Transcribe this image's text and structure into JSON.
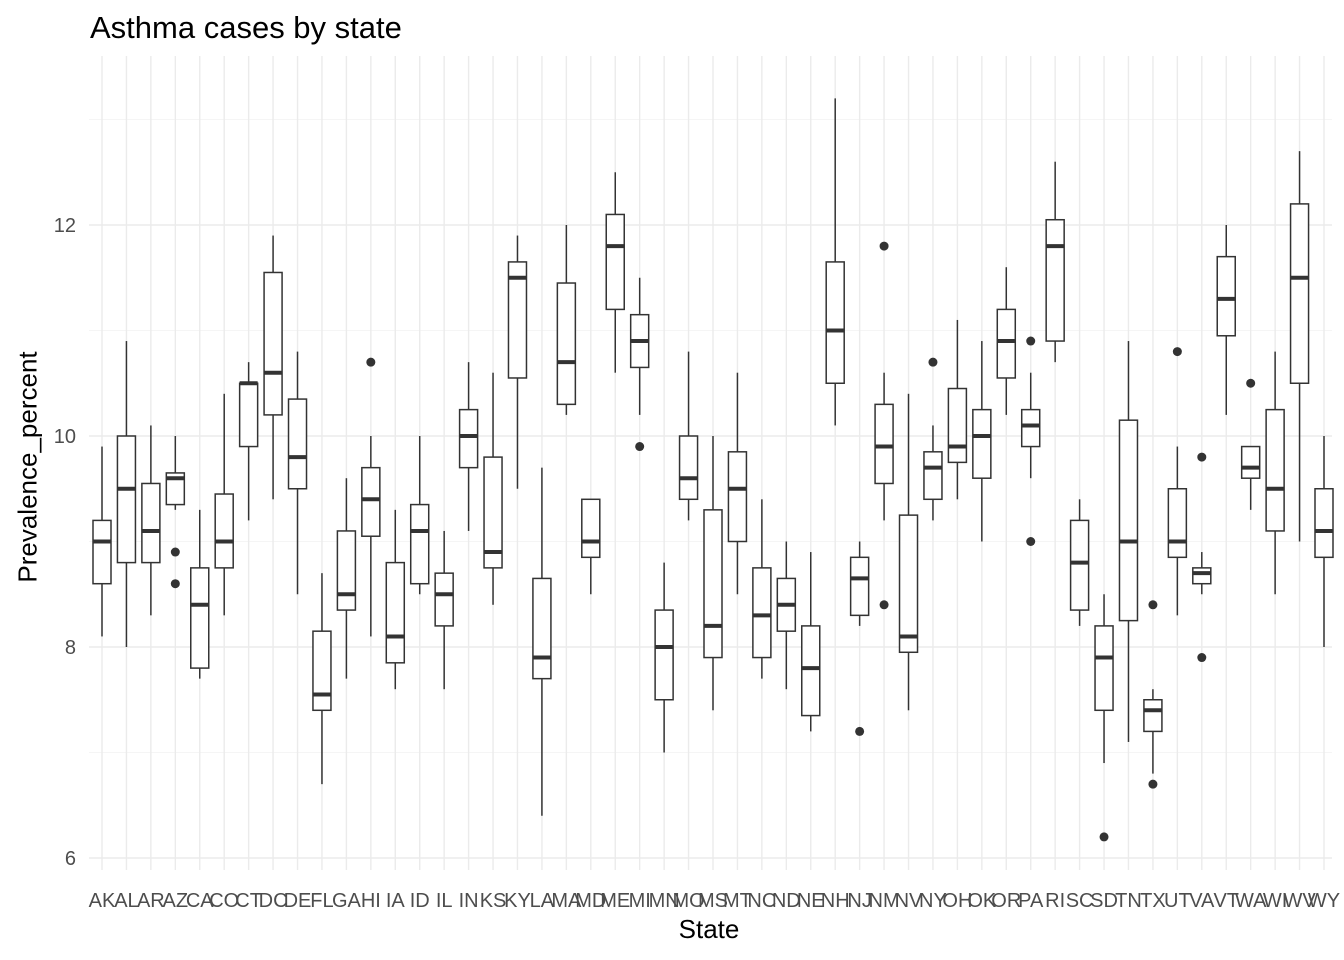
{
  "chart_data": {
    "type": "boxplot",
    "title": "Asthma cases by state",
    "xlabel": "State",
    "ylabel": "Prevalence_percent",
    "ylim": [
      5.9,
      13.4
    ],
    "y_ticks": [
      6,
      8,
      10,
      12
    ],
    "grid": true,
    "legend": "none",
    "categories": [
      "AK",
      "AL",
      "AR",
      "AZ",
      "CA",
      "CO",
      "CT",
      "DC",
      "DE",
      "FL",
      "GA",
      "HI",
      "IA",
      "ID",
      "IL",
      "IN",
      "KS",
      "KY",
      "LA",
      "MA",
      "MD",
      "ME",
      "MI",
      "MN",
      "MO",
      "MS",
      "MT",
      "NC",
      "ND",
      "NE",
      "NH",
      "NJ",
      "NM",
      "NV",
      "NY",
      "OH",
      "OK",
      "OR",
      "PA",
      "RI",
      "SC",
      "SD",
      "TN",
      "TX",
      "UT",
      "VA",
      "VT",
      "WA",
      "WI",
      "WV",
      "WY"
    ],
    "boxes": [
      {
        "state": "AK",
        "min": 8.1,
        "q1": 8.6,
        "median": 9.0,
        "q3": 9.2,
        "max": 9.9,
        "outliers": []
      },
      {
        "state": "AL",
        "min": 8.0,
        "q1": 8.8,
        "median": 9.5,
        "q3": 10.0,
        "max": 10.9,
        "outliers": []
      },
      {
        "state": "AR",
        "min": 8.3,
        "q1": 8.8,
        "median": 9.1,
        "q3": 9.55,
        "max": 10.1,
        "outliers": []
      },
      {
        "state": "AZ",
        "min": 9.3,
        "q1": 9.35,
        "median": 9.6,
        "q3": 9.65,
        "max": 10.0,
        "outliers": [
          8.9,
          8.6
        ]
      },
      {
        "state": "CA",
        "min": 7.7,
        "q1": 7.8,
        "median": 8.4,
        "q3": 8.75,
        "max": 9.3,
        "outliers": []
      },
      {
        "state": "CO",
        "min": 8.3,
        "q1": 8.75,
        "median": 9.0,
        "q3": 9.45,
        "max": 10.4,
        "outliers": []
      },
      {
        "state": "CT",
        "min": 9.2,
        "q1": 9.9,
        "median": 10.5,
        "q3": 10.5,
        "max": 10.7,
        "outliers": []
      },
      {
        "state": "DC",
        "min": 9.4,
        "q1": 10.2,
        "median": 10.6,
        "q3": 11.55,
        "max": 11.9,
        "outliers": []
      },
      {
        "state": "DE",
        "min": 8.5,
        "q1": 9.5,
        "median": 9.8,
        "q3": 10.35,
        "max": 10.8,
        "outliers": []
      },
      {
        "state": "FL",
        "min": 6.7,
        "q1": 7.4,
        "median": 7.55,
        "q3": 8.15,
        "max": 8.7,
        "outliers": []
      },
      {
        "state": "GA",
        "min": 7.7,
        "q1": 8.35,
        "median": 8.5,
        "q3": 9.1,
        "max": 9.6,
        "outliers": []
      },
      {
        "state": "HI",
        "min": 8.1,
        "q1": 9.05,
        "median": 9.4,
        "q3": 9.7,
        "max": 10.0,
        "outliers": [
          10.7
        ]
      },
      {
        "state": "IA",
        "min": 7.6,
        "q1": 7.85,
        "median": 8.1,
        "q3": 8.8,
        "max": 9.3,
        "outliers": []
      },
      {
        "state": "ID",
        "min": 8.5,
        "q1": 8.6,
        "median": 9.1,
        "q3": 9.35,
        "max": 10.0,
        "outliers": []
      },
      {
        "state": "IL",
        "min": 7.6,
        "q1": 8.2,
        "median": 8.5,
        "q3": 8.7,
        "max": 9.1,
        "outliers": []
      },
      {
        "state": "IN",
        "min": 9.1,
        "q1": 9.7,
        "median": 10.0,
        "q3": 10.25,
        "max": 10.7,
        "outliers": []
      },
      {
        "state": "KS",
        "min": 8.4,
        "q1": 8.75,
        "median": 8.9,
        "q3": 9.8,
        "max": 10.6,
        "outliers": []
      },
      {
        "state": "KY",
        "min": 9.5,
        "q1": 10.55,
        "median": 11.5,
        "q3": 11.65,
        "max": 11.9,
        "outliers": []
      },
      {
        "state": "LA",
        "min": 6.4,
        "q1": 7.7,
        "median": 7.9,
        "q3": 8.65,
        "max": 9.7,
        "outliers": []
      },
      {
        "state": "MA",
        "min": 10.2,
        "q1": 10.3,
        "median": 10.7,
        "q3": 11.45,
        "max": 12.0,
        "outliers": []
      },
      {
        "state": "MD",
        "min": 8.5,
        "q1": 8.85,
        "median": 9.0,
        "q3": 9.4,
        "max": 9.4,
        "outliers": []
      },
      {
        "state": "ME",
        "min": 10.6,
        "q1": 11.2,
        "median": 11.8,
        "q3": 12.1,
        "max": 12.5,
        "outliers": []
      },
      {
        "state": "MI",
        "min": 10.2,
        "q1": 10.65,
        "median": 10.9,
        "q3": 11.15,
        "max": 11.5,
        "outliers": [
          9.9
        ]
      },
      {
        "state": "MN",
        "min": 7.0,
        "q1": 7.5,
        "median": 8.0,
        "q3": 8.35,
        "max": 8.8,
        "outliers": []
      },
      {
        "state": "MO",
        "min": 9.2,
        "q1": 9.4,
        "median": 9.6,
        "q3": 10.0,
        "max": 10.8,
        "outliers": []
      },
      {
        "state": "MS",
        "min": 7.4,
        "q1": 7.9,
        "median": 8.2,
        "q3": 9.3,
        "max": 10.0,
        "outliers": []
      },
      {
        "state": "MT",
        "min": 8.5,
        "q1": 9.0,
        "median": 9.5,
        "q3": 9.85,
        "max": 10.6,
        "outliers": []
      },
      {
        "state": "NC",
        "min": 7.7,
        "q1": 7.9,
        "median": 8.3,
        "q3": 8.75,
        "max": 9.4,
        "outliers": []
      },
      {
        "state": "ND",
        "min": 7.6,
        "q1": 8.15,
        "median": 8.4,
        "q3": 8.65,
        "max": 9.0,
        "outliers": []
      },
      {
        "state": "NE",
        "min": 7.2,
        "q1": 7.35,
        "median": 7.8,
        "q3": 8.2,
        "max": 8.9,
        "outliers": []
      },
      {
        "state": "NH",
        "min": 10.1,
        "q1": 10.5,
        "median": 11.0,
        "q3": 11.65,
        "max": 13.2,
        "outliers": []
      },
      {
        "state": "NJ",
        "min": 8.2,
        "q1": 8.3,
        "median": 8.65,
        "q3": 8.85,
        "max": 9.0,
        "outliers": [
          7.2
        ]
      },
      {
        "state": "NM",
        "min": 9.2,
        "q1": 9.55,
        "median": 9.9,
        "q3": 10.3,
        "max": 10.6,
        "outliers": [
          11.8,
          8.4
        ]
      },
      {
        "state": "NV",
        "min": 7.4,
        "q1": 7.95,
        "median": 8.1,
        "q3": 9.25,
        "max": 10.4,
        "outliers": []
      },
      {
        "state": "NY",
        "min": 9.2,
        "q1": 9.4,
        "median": 9.7,
        "q3": 9.85,
        "max": 10.1,
        "outliers": [
          10.7
        ]
      },
      {
        "state": "OH",
        "min": 9.4,
        "q1": 9.75,
        "median": 9.9,
        "q3": 10.45,
        "max": 11.1,
        "outliers": []
      },
      {
        "state": "OK",
        "min": 9.0,
        "q1": 9.6,
        "median": 10.0,
        "q3": 10.25,
        "max": 10.9,
        "outliers": []
      },
      {
        "state": "OR",
        "min": 10.2,
        "q1": 10.55,
        "median": 10.9,
        "q3": 11.2,
        "max": 11.6,
        "outliers": []
      },
      {
        "state": "PA",
        "min": 9.6,
        "q1": 9.9,
        "median": 10.1,
        "q3": 10.25,
        "max": 10.6,
        "outliers": [
          10.9,
          9.0
        ]
      },
      {
        "state": "RI",
        "min": 10.7,
        "q1": 10.9,
        "median": 11.8,
        "q3": 12.05,
        "max": 12.6,
        "outliers": []
      },
      {
        "state": "SC",
        "min": 8.2,
        "q1": 8.35,
        "median": 8.8,
        "q3": 9.2,
        "max": 9.4,
        "outliers": []
      },
      {
        "state": "SD",
        "min": 6.9,
        "q1": 7.4,
        "median": 7.9,
        "q3": 8.2,
        "max": 8.5,
        "outliers": [
          6.2
        ]
      },
      {
        "state": "TN",
        "min": 7.1,
        "q1": 8.25,
        "median": 9.0,
        "q3": 10.15,
        "max": 10.9,
        "outliers": []
      },
      {
        "state": "TX",
        "min": 6.8,
        "q1": 7.2,
        "median": 7.4,
        "q3": 7.5,
        "max": 7.6,
        "outliers": [
          8.4,
          6.7
        ]
      },
      {
        "state": "UT",
        "min": 8.3,
        "q1": 8.85,
        "median": 9.0,
        "q3": 9.5,
        "max": 9.9,
        "outliers": [
          10.8
        ]
      },
      {
        "state": "VA",
        "min": 8.5,
        "q1": 8.6,
        "median": 8.7,
        "q3": 8.75,
        "max": 8.9,
        "outliers": [
          9.8,
          7.9
        ]
      },
      {
        "state": "VT",
        "min": 10.2,
        "q1": 10.95,
        "median": 11.3,
        "q3": 11.7,
        "max": 12.0,
        "outliers": []
      },
      {
        "state": "WA",
        "min": 9.3,
        "q1": 9.6,
        "median": 9.7,
        "q3": 9.9,
        "max": 9.9,
        "outliers": [
          10.5
        ]
      },
      {
        "state": "WI",
        "min": 8.5,
        "q1": 9.1,
        "median": 9.5,
        "q3": 10.25,
        "max": 10.8,
        "outliers": []
      },
      {
        "state": "WV",
        "min": 9.0,
        "q1": 10.5,
        "median": 11.5,
        "q3": 12.2,
        "max": 12.7,
        "outliers": []
      },
      {
        "state": "WY",
        "min": 8.0,
        "q1": 8.85,
        "median": 9.1,
        "q3": 9.5,
        "max": 10.0,
        "outliers": []
      }
    ],
    "colors": {
      "box_line": "#333333",
      "box_fill": "#ffffff",
      "grid_major": "#ebebeb",
      "grid_minor": "#f5f5f5",
      "tick_text": "#4d4d4d"
    }
  }
}
